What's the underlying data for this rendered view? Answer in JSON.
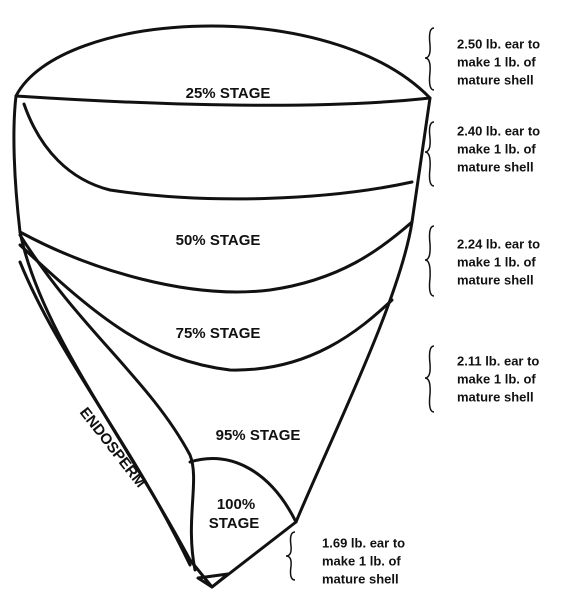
{
  "stages": [
    "25% STAGE",
    "50% STAGE",
    "75% STAGE",
    "95% STAGE"
  ],
  "final_stage": [
    "100%",
    "STAGE"
  ],
  "endosperm": "ENDOSPERM",
  "notes": [
    [
      "2.50 lb. ear to",
      "make 1 lb. of",
      "mature shell"
    ],
    [
      "2.40 lb. ear to",
      "make 1 lb. of",
      "mature shell"
    ],
    [
      "2.24 lb. ear to",
      "make 1 lb. of",
      "mature shell"
    ],
    [
      "2.11 lb. ear to",
      "make 1 lb. of",
      "mature shell"
    ],
    [
      "1.69 lb. ear to",
      "make 1 lb. of",
      "mature shell"
    ]
  ]
}
